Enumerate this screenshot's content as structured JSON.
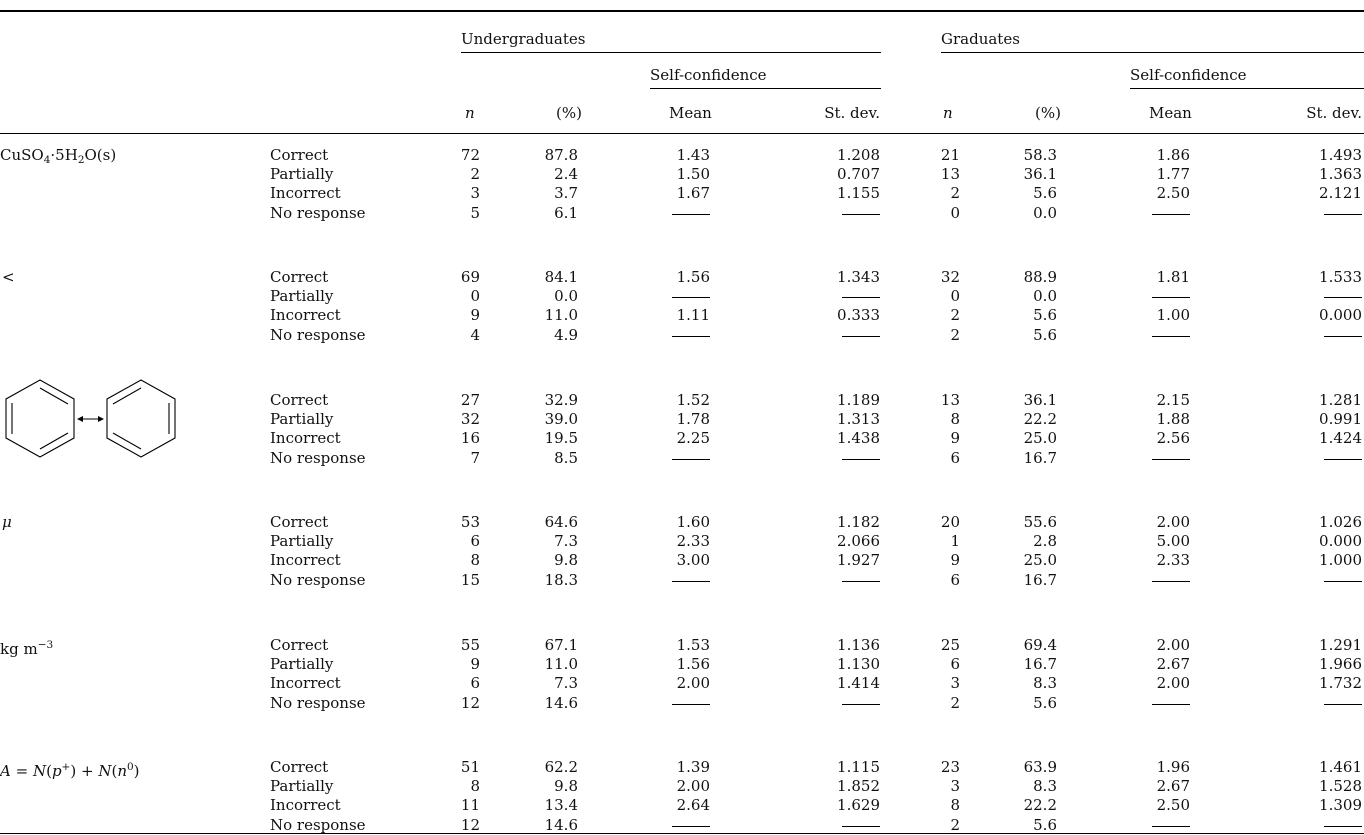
{
  "header": {
    "group_undergrad": "Undergraduates",
    "group_grad": "Graduates",
    "self_confidence": "Self-confidence",
    "col_n": "n",
    "col_pct": "(%)",
    "col_mean": "Mean",
    "col_sd": "St. dev."
  },
  "rows_labels": {
    "cuso4": "CuSO₄·5H₂O(s)",
    "less_than": "<",
    "benzene": "resonance-structures",
    "mu": "μ",
    "kgm3": "kg m⁻³",
    "mass_number": "A = N(p⁺) + N(n⁰)"
  },
  "response_types": [
    "Correct",
    "Partially",
    "Incorrect",
    "No response"
  ],
  "groups": [
    {
      "label_key": "cuso4",
      "rows": [
        [
          "72",
          "87.8",
          "1.43",
          "1.208",
          "21",
          "58.3",
          "1.86",
          "1.493"
        ],
        [
          "2",
          "2.4",
          "1.50",
          "0.707",
          "13",
          "36.1",
          "1.77",
          "1.363"
        ],
        [
          "3",
          "3.7",
          "1.67",
          "1.155",
          "2",
          "5.6",
          "2.50",
          "2.121"
        ],
        [
          "5",
          "6.1",
          "—",
          "—",
          "0",
          "0.0",
          "—",
          "—"
        ]
      ]
    },
    {
      "label_key": "less_than",
      "rows": [
        [
          "69",
          "84.1",
          "1.56",
          "1.343",
          "32",
          "88.9",
          "1.81",
          "1.533"
        ],
        [
          "0",
          "0.0",
          "—",
          "—",
          "0",
          "0.0",
          "—",
          "—"
        ],
        [
          "9",
          "11.0",
          "1.11",
          "0.333",
          "2",
          "5.6",
          "1.00",
          "0.000"
        ],
        [
          "4",
          "4.9",
          "—",
          "—",
          "2",
          "5.6",
          "—",
          "—"
        ]
      ]
    },
    {
      "label_key": "benzene",
      "rows": [
        [
          "27",
          "32.9",
          "1.52",
          "1.189",
          "13",
          "36.1",
          "2.15",
          "1.281"
        ],
        [
          "32",
          "39.0",
          "1.78",
          "1.313",
          "8",
          "22.2",
          "1.88",
          "0.991"
        ],
        [
          "16",
          "19.5",
          "2.25",
          "1.438",
          "9",
          "25.0",
          "2.56",
          "1.424"
        ],
        [
          "7",
          "8.5",
          "—",
          "—",
          "6",
          "16.7",
          "—",
          "—"
        ]
      ]
    },
    {
      "label_key": "mu",
      "rows": [
        [
          "53",
          "64.6",
          "1.60",
          "1.182",
          "20",
          "55.6",
          "2.00",
          "1.026"
        ],
        [
          "6",
          "7.3",
          "2.33",
          "2.066",
          "1",
          "2.8",
          "5.00",
          "0.000"
        ],
        [
          "8",
          "9.8",
          "3.00",
          "1.927",
          "9",
          "25.0",
          "2.33",
          "1.000"
        ],
        [
          "15",
          "18.3",
          "—",
          "—",
          "6",
          "16.7",
          "—",
          "—"
        ]
      ]
    },
    {
      "label_key": "kgm3",
      "rows": [
        [
          "55",
          "67.1",
          "1.53",
          "1.136",
          "25",
          "69.4",
          "2.00",
          "1.291"
        ],
        [
          "9",
          "11.0",
          "1.56",
          "1.130",
          "6",
          "16.7",
          "2.67",
          "1.966"
        ],
        [
          "6",
          "7.3",
          "2.00",
          "1.414",
          "3",
          "8.3",
          "2.00",
          "1.732"
        ],
        [
          "12",
          "14.6",
          "—",
          "—",
          "2",
          "5.6",
          "—",
          "—"
        ]
      ]
    },
    {
      "label_key": "mass_number",
      "rows": [
        [
          "51",
          "62.2",
          "1.39",
          "1.115",
          "23",
          "63.9",
          "1.96",
          "1.461"
        ],
        [
          "8",
          "9.8",
          "2.00",
          "1.852",
          "3",
          "8.3",
          "2.67",
          "1.528"
        ],
        [
          "11",
          "13.4",
          "2.64",
          "1.629",
          "8",
          "22.2",
          "2.50",
          "1.309"
        ],
        [
          "12",
          "14.6",
          "—",
          "—",
          "2",
          "5.6",
          "—",
          "—"
        ]
      ]
    }
  ]
}
